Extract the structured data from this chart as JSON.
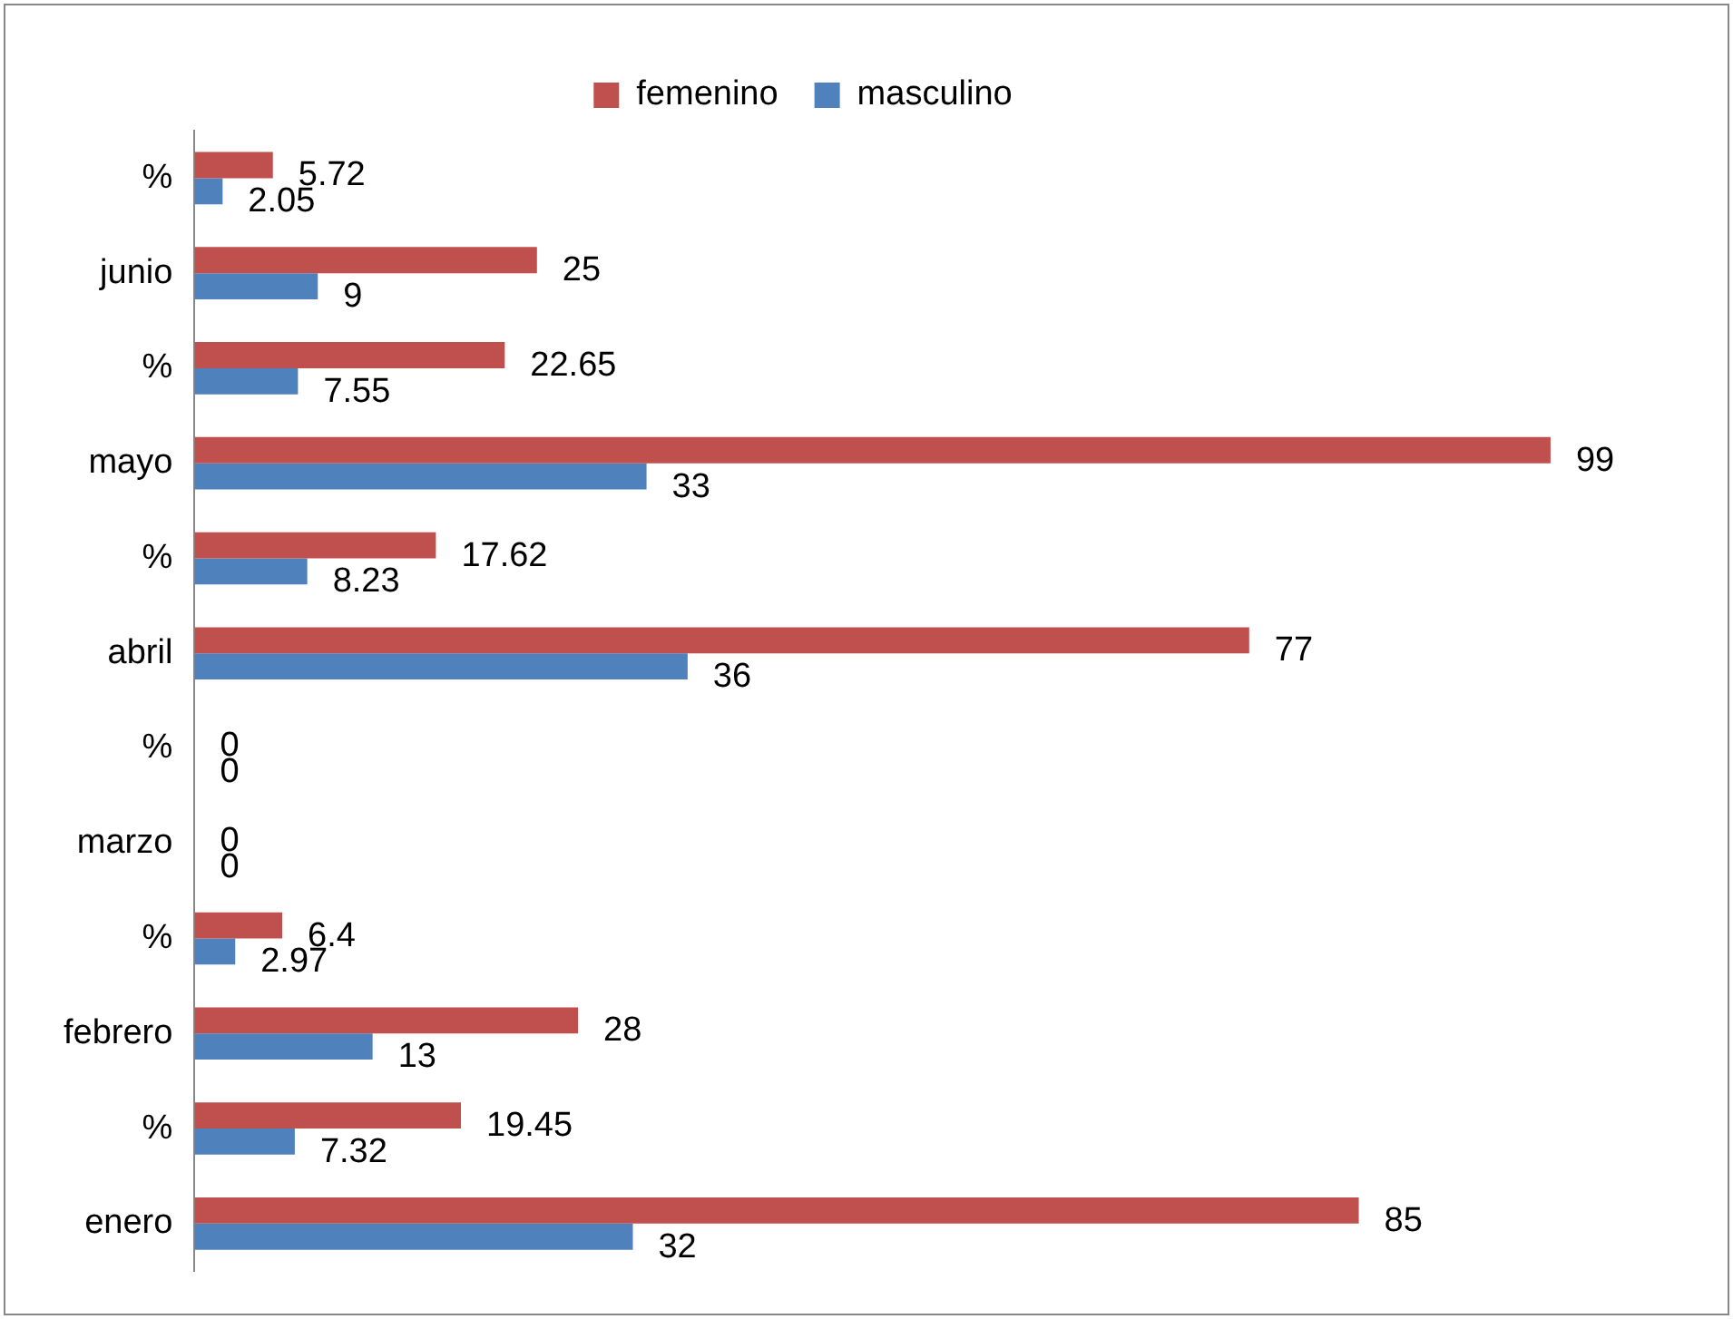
{
  "chart_data": {
    "type": "bar",
    "orientation": "horizontal",
    "categories": [
      "%",
      "junio",
      "%",
      "mayo",
      "%",
      "abril",
      "%",
      "marzo",
      "%",
      "febrero",
      "%",
      "enero"
    ],
    "series": [
      {
        "name": "femenino",
        "color": "#c0504d",
        "values": [
          5.72,
          25,
          22.65,
          99,
          17.62,
          77,
          0,
          0,
          6.4,
          28,
          19.45,
          85
        ]
      },
      {
        "name": "masculino",
        "color": "#4f81bd",
        "values": [
          2.05,
          9,
          7.55,
          33,
          8.23,
          36,
          0,
          0,
          2.97,
          13,
          7.32,
          32
        ]
      }
    ],
    "data_labels": true,
    "legend": "top",
    "grid": false
  }
}
